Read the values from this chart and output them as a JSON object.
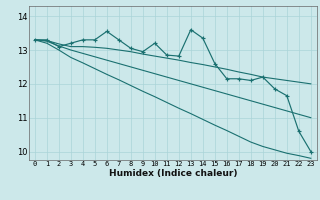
{
  "bg_color": "#cce8ea",
  "grid_color": "#aad4d8",
  "line_color": "#1a7070",
  "xlabel": "Humidex (Indice chaleur)",
  "xlim": [
    -0.5,
    23.5
  ],
  "ylim": [
    9.75,
    14.3
  ],
  "xticks": [
    0,
    1,
    2,
    3,
    4,
    5,
    6,
    7,
    8,
    9,
    10,
    11,
    12,
    13,
    14,
    15,
    16,
    17,
    18,
    19,
    20,
    21,
    22,
    23
  ],
  "yticks": [
    10,
    11,
    12,
    13,
    14
  ],
  "x": [
    0,
    1,
    2,
    3,
    4,
    5,
    6,
    7,
    8,
    9,
    10,
    11,
    12,
    13,
    14,
    15,
    16,
    17,
    18,
    19,
    20,
    21,
    22,
    23
  ],
  "line_jagged": [
    13.3,
    13.3,
    13.1,
    13.2,
    13.3,
    13.3,
    13.55,
    13.3,
    13.05,
    12.95,
    13.2,
    12.85,
    12.82,
    13.6,
    13.35,
    12.6,
    12.15,
    12.15,
    12.1,
    12.2,
    11.85,
    11.65,
    10.6,
    10.0
  ],
  "line_smooth1": [
    13.3,
    13.28,
    13.18,
    13.1,
    13.1,
    13.08,
    13.05,
    13.0,
    12.95,
    12.88,
    12.82,
    12.76,
    12.7,
    12.63,
    12.57,
    12.5,
    12.43,
    12.35,
    12.28,
    12.2,
    12.15,
    12.1,
    12.05,
    12.0
  ],
  "line_smooth2": [
    13.3,
    13.26,
    13.12,
    13.0,
    12.9,
    12.8,
    12.7,
    12.6,
    12.5,
    12.4,
    12.3,
    12.2,
    12.1,
    12.0,
    11.9,
    11.8,
    11.7,
    11.6,
    11.5,
    11.4,
    11.3,
    11.2,
    11.1,
    11.0
  ],
  "line_smooth3": [
    13.3,
    13.2,
    13.0,
    12.78,
    12.62,
    12.45,
    12.28,
    12.12,
    11.95,
    11.78,
    11.62,
    11.45,
    11.28,
    11.12,
    10.95,
    10.78,
    10.62,
    10.45,
    10.28,
    10.15,
    10.05,
    9.95,
    9.88,
    9.8
  ]
}
